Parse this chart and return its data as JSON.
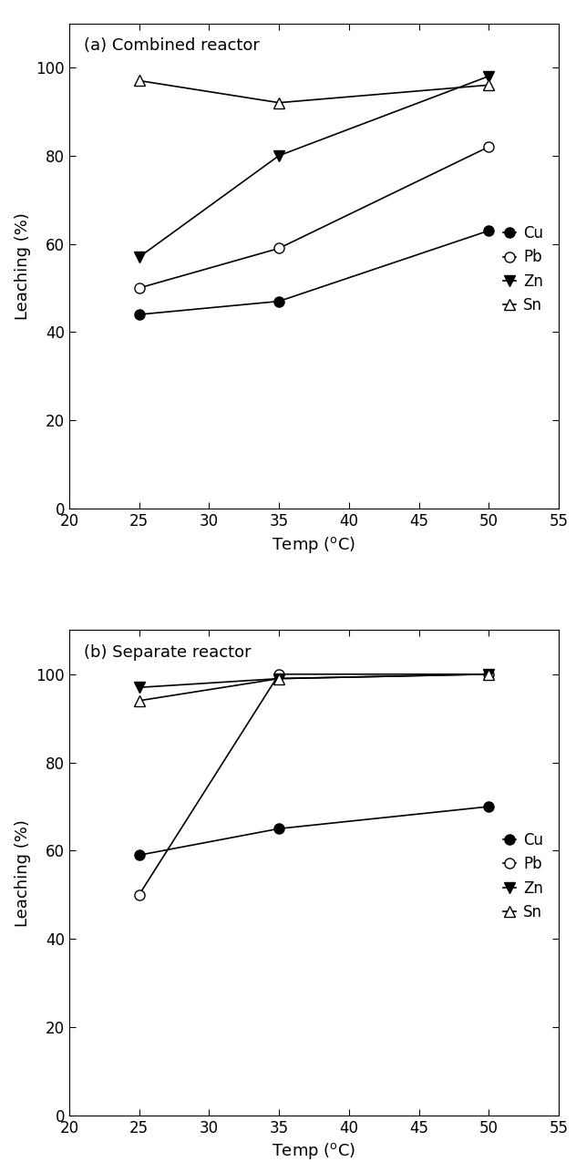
{
  "temps": [
    25,
    35,
    50
  ],
  "panel_a": {
    "title": "(a) Combined reactor",
    "Cu": [
      44,
      47,
      63
    ],
    "Pb": [
      50,
      59,
      82
    ],
    "Zn": [
      57,
      80,
      98
    ],
    "Sn": [
      97,
      92,
      96
    ]
  },
  "panel_b": {
    "title": "(b) Separate reactor",
    "Cu": [
      59,
      65,
      70
    ],
    "Pb": [
      50,
      100,
      100
    ],
    "Zn": [
      97,
      99,
      100
    ],
    "Sn": [
      94,
      99,
      100
    ]
  },
  "xlabel": "Temp (",
  "ylabel": "Leaching (%)",
  "xlim": [
    20,
    55
  ],
  "xticks": [
    20,
    25,
    30,
    35,
    40,
    45,
    50,
    55
  ],
  "ylim": [
    0,
    110
  ],
  "yticks": [
    0,
    20,
    40,
    60,
    80,
    100
  ],
  "legend_labels": [
    "Cu",
    "Pb",
    "Zn",
    "Sn"
  ],
  "marker_Cu": "o",
  "marker_Pb": "o",
  "marker_Zn": "v",
  "marker_Sn": "^",
  "fill_Cu": "black",
  "fill_Pb": "white",
  "fill_Zn": "black",
  "fill_Sn": "white",
  "linecolor": "black",
  "markersize": 8,
  "linewidth": 1.2,
  "fontsize_label": 13,
  "fontsize_tick": 12,
  "fontsize_title": 13,
  "fontsize_legend": 12
}
